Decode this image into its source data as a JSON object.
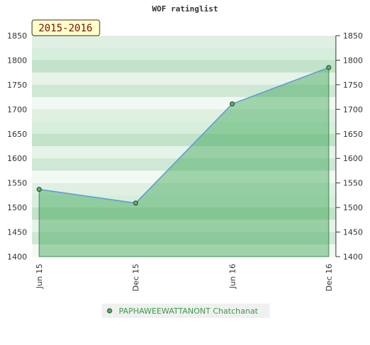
{
  "chart_data": {
    "type": "line",
    "title": "WOF ratinglist",
    "annotation": "2015-2016",
    "categories": [
      "Jun 15",
      "Dec 15",
      "Jun 16",
      "Dec 16"
    ],
    "series": [
      {
        "name": "PAPHAWEEWATTANONT Chatchanat",
        "color": "#5b9bd5",
        "values": [
          1537,
          1509,
          1711,
          1785
        ]
      }
    ],
    "ylim": [
      1400,
      1850
    ],
    "yticks": [
      1400,
      1450,
      1500,
      1550,
      1600,
      1650,
      1700,
      1750,
      1800,
      1850
    ]
  }
}
